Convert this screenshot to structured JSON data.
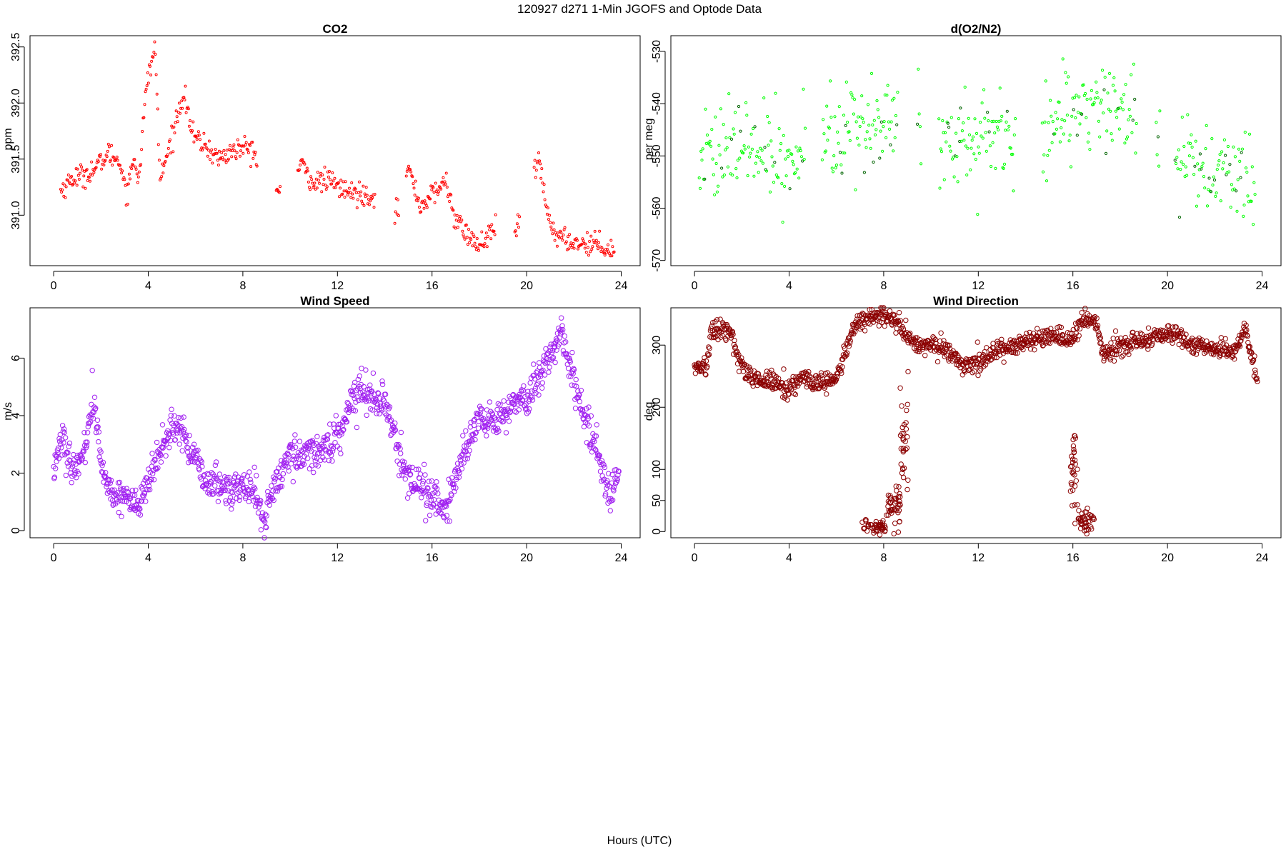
{
  "figure": {
    "title": "120927   d271   1-Min  JGOFS and Optode Data",
    "xlabel": "Hours (UTC)"
  },
  "chart_data": [
    {
      "type": "scatter",
      "title": "CO2",
      "ylabel": "ppm",
      "color": "#ff0000",
      "xlim": [
        -1,
        24.8
      ],
      "ylim": [
        390.55,
        392.6
      ],
      "x_ticks": [
        0,
        4,
        8,
        12,
        16,
        20,
        24
      ],
      "y_ticks": [
        391.0,
        391.5,
        392.0,
        392.5
      ],
      "y_tick_labels": [
        "391.0",
        "391.5",
        "392.0",
        "392.5"
      ],
      "anchors": [
        [
          0.3,
          391.22
        ],
        [
          0.8,
          391.33
        ],
        [
          1.3,
          391.36
        ],
        [
          1.8,
          391.42
        ],
        [
          2.3,
          391.55
        ],
        [
          2.8,
          391.48
        ],
        [
          3.1,
          391.2
        ],
        [
          3.4,
          391.52
        ],
        [
          3.6,
          391.32
        ],
        [
          3.9,
          392.1
        ],
        [
          4.1,
          392.35
        ],
        [
          4.3,
          392.48
        ],
        [
          4.5,
          391.3
        ],
        [
          5.5,
          392.1
        ],
        [
          5.9,
          391.7
        ],
        [
          6.4,
          391.62
        ],
        [
          7.0,
          391.5
        ],
        [
          7.6,
          391.58
        ],
        [
          8.3,
          391.6
        ],
        [
          9.5,
          391.2
        ],
        [
          10.5,
          391.45
        ],
        [
          11.0,
          391.28
        ],
        [
          11.5,
          391.32
        ],
        [
          12.5,
          391.2
        ],
        [
          13.5,
          391.18
        ],
        [
          14.5,
          391.03
        ],
        [
          15.0,
          391.42
        ],
        [
          15.5,
          391.08
        ],
        [
          16.1,
          391.2
        ],
        [
          16.6,
          391.3
        ],
        [
          17.0,
          390.95
        ],
        [
          17.6,
          390.8
        ],
        [
          18.0,
          390.72
        ],
        [
          18.5,
          390.85
        ],
        [
          19.6,
          390.88
        ],
        [
          20.5,
          391.5
        ],
        [
          20.9,
          391.0
        ],
        [
          21.3,
          390.8
        ],
        [
          22.2,
          390.75
        ],
        [
          23.0,
          390.75
        ],
        [
          23.7,
          390.68
        ]
      ],
      "gaps": [
        [
          8.6,
          9.4
        ],
        [
          9.6,
          10.3
        ],
        [
          13.6,
          14.4
        ],
        [
          14.6,
          14.9
        ],
        [
          18.7,
          19.5
        ],
        [
          19.7,
          20.3
        ]
      ],
      "noise": 0.05,
      "n": 720,
      "point_radius": 1.5
    },
    {
      "type": "scatter",
      "title": "d(O2/N2)",
      "ylabel": "per meg",
      "color": "#00ff00",
      "dark_color": "#006400",
      "xlim": [
        -1,
        24.8
      ],
      "ylim": [
        -571,
        -527
      ],
      "x_ticks": [
        0,
        4,
        8,
        12,
        16,
        20,
        24
      ],
      "y_ticks": [
        -570,
        -560,
        -550,
        -540,
        -530
      ],
      "y_tick_labels": [
        "-570",
        "-560",
        "-550",
        "-540",
        "-530"
      ],
      "anchors": [
        [
          0.2,
          -551
        ],
        [
          1.0,
          -549
        ],
        [
          2.0,
          -548
        ],
        [
          3.0,
          -549
        ],
        [
          3.8,
          -551
        ],
        [
          4.5,
          -550
        ],
        [
          5.5,
          -544
        ],
        [
          6.5,
          -545
        ],
        [
          7.5,
          -545
        ],
        [
          8.3,
          -546
        ],
        [
          9.5,
          -545
        ],
        [
          10.5,
          -547
        ],
        [
          11.5,
          -547
        ],
        [
          12.5,
          -547
        ],
        [
          13.5,
          -546
        ],
        [
          14.8,
          -545
        ],
        [
          15.5,
          -543
        ],
        [
          16.5,
          -540
        ],
        [
          17.5,
          -540
        ],
        [
          18.5,
          -541
        ],
        [
          19.6,
          -550
        ],
        [
          20.3,
          -549
        ],
        [
          21.0,
          -550
        ],
        [
          22.0,
          -552
        ],
        [
          23.0,
          -553
        ],
        [
          23.7,
          -555
        ]
      ],
      "gaps": [
        [
          4.7,
          5.4
        ],
        [
          8.6,
          9.4
        ],
        [
          9.6,
          10.3
        ],
        [
          13.6,
          14.7
        ],
        [
          18.7,
          19.5
        ],
        [
          19.7,
          20.3
        ]
      ],
      "noise": 4.6,
      "n": 620,
      "point_radius": 1.6
    },
    {
      "type": "scatter",
      "title": "Wind Speed",
      "ylabel": "m/s",
      "color": "#a020f0",
      "xlim": [
        -1,
        24.8
      ],
      "ylim": [
        -0.25,
        7.75
      ],
      "x_ticks": [
        0,
        4,
        8,
        12,
        16,
        20,
        24
      ],
      "y_ticks": [
        0,
        2,
        4,
        6
      ],
      "y_tick_labels": [
        "0",
        "2",
        "4",
        "6"
      ],
      "anchors": [
        [
          0.0,
          2.2
        ],
        [
          0.4,
          3.3
        ],
        [
          0.8,
          1.8
        ],
        [
          1.3,
          2.9
        ],
        [
          1.7,
          4.5
        ],
        [
          2.0,
          2.3
        ],
        [
          2.5,
          1.2
        ],
        [
          3.0,
          1.3
        ],
        [
          3.5,
          0.8
        ],
        [
          4.0,
          1.6
        ],
        [
          4.5,
          2.7
        ],
        [
          5.0,
          3.6
        ],
        [
          5.5,
          3.4
        ],
        [
          6.0,
          2.4
        ],
        [
          6.5,
          1.6
        ],
        [
          7.0,
          1.6
        ],
        [
          7.5,
          1.4
        ],
        [
          8.0,
          1.6
        ],
        [
          8.5,
          1.3
        ],
        [
          8.9,
          0.4
        ],
        [
          9.5,
          1.9
        ],
        [
          10.0,
          2.6
        ],
        [
          11.0,
          2.7
        ],
        [
          12.0,
          3.2
        ],
        [
          12.5,
          4.4
        ],
        [
          13.0,
          5.0
        ],
        [
          14.0,
          4.4
        ],
        [
          14.5,
          3.0
        ],
        [
          15.0,
          1.8
        ],
        [
          15.5,
          1.6
        ],
        [
          16.5,
          0.7
        ],
        [
          17.0,
          1.7
        ],
        [
          17.5,
          3.0
        ],
        [
          18.0,
          4.1
        ],
        [
          18.5,
          3.8
        ],
        [
          19.0,
          4.0
        ],
        [
          19.5,
          4.6
        ],
        [
          20.0,
          4.4
        ],
        [
          20.5,
          5.4
        ],
        [
          21.0,
          6.1
        ],
        [
          21.5,
          7.0
        ],
        [
          22.0,
          5.0
        ],
        [
          22.5,
          3.8
        ],
        [
          23.0,
          2.9
        ],
        [
          23.5,
          1.2
        ],
        [
          23.9,
          2.1
        ]
      ],
      "gaps": [],
      "noise": 0.3,
      "n": 1200,
      "point_radius": 3.2
    },
    {
      "type": "scatter",
      "title": "Wind Direction",
      "ylabel": "deg",
      "color": "#8b0000",
      "xlim": [
        -1,
        24.8
      ],
      "ylim": [
        -10,
        360
      ],
      "x_ticks": [
        0,
        4,
        8,
        12,
        16,
        20,
        24
      ],
      "y_ticks": [
        0,
        50,
        100,
        200,
        300
      ],
      "y_tick_labels": [
        "0",
        "50",
        "100",
        "200",
        "300"
      ],
      "anchors": [
        [
          0.0,
          265
        ],
        [
          0.5,
          265
        ],
        [
          0.7,
          320
        ],
        [
          1.5,
          325
        ],
        [
          2.0,
          260
        ],
        [
          2.5,
          245
        ],
        [
          3.0,
          240
        ],
        [
          3.5,
          240
        ],
        [
          4.0,
          230
        ],
        [
          4.5,
          245
        ],
        [
          5.0,
          240
        ],
        [
          5.5,
          240
        ],
        [
          6.0,
          245
        ],
        [
          6.3,
          280
        ],
        [
          6.8,
          330
        ],
        [
          7.2,
          345
        ],
        [
          8.0,
          348
        ],
        [
          8.2,
          345
        ],
        [
          8.9,
          320
        ],
        [
          9.5,
          300
        ],
        [
          10.5,
          295
        ],
        [
          11.0,
          280
        ],
        [
          11.5,
          265
        ],
        [
          12.0,
          275
        ],
        [
          13.0,
          295
        ],
        [
          14.0,
          305
        ],
        [
          15.0,
          310
        ],
        [
          16.0,
          310
        ],
        [
          16.4,
          340
        ],
        [
          16.9,
          340
        ],
        [
          17.3,
          285
        ],
        [
          18.0,
          300
        ],
        [
          19.0,
          305
        ],
        [
          19.5,
          315
        ],
        [
          20.0,
          320
        ],
        [
          20.5,
          315
        ],
        [
          21.0,
          300
        ],
        [
          22.0,
          295
        ],
        [
          22.8,
          290
        ],
        [
          23.3,
          325
        ],
        [
          23.8,
          240
        ]
      ],
      "gaps": [],
      "noise": 8,
      "n": 1200,
      "point_radius": 3.2,
      "extra_clusters": [
        {
          "x_range": [
            7.0,
            8.1
          ],
          "y": 8,
          "noise": 6,
          "n": 45
        },
        {
          "x_range": [
            8.1,
            8.7
          ],
          "y": 40,
          "noise": 14,
          "n": 45
        },
        {
          "x_range": [
            8.7,
            9.05
          ],
          "y": 150,
          "noise": 45,
          "n": 30
        },
        {
          "x_range": [
            15.9,
            16.2
          ],
          "y": 100,
          "noise": 40,
          "n": 30
        },
        {
          "x_range": [
            16.2,
            16.9
          ],
          "y": 15,
          "noise": 10,
          "n": 40
        }
      ]
    }
  ]
}
